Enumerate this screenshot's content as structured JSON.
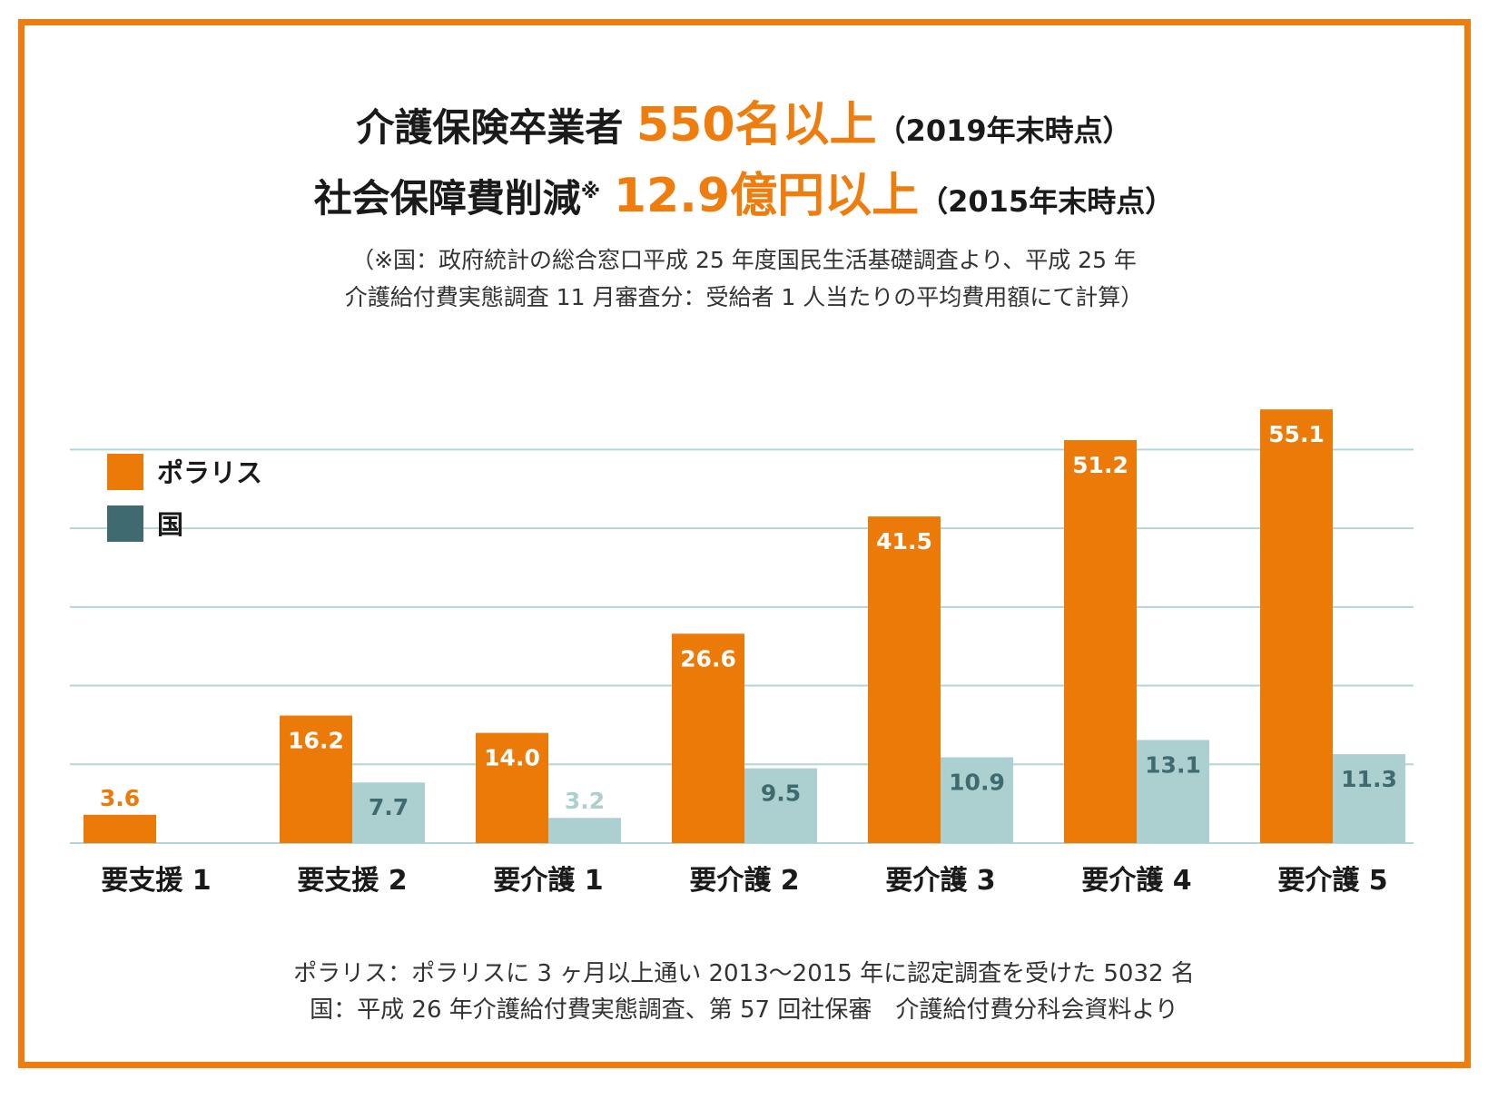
{
  "header": {
    "line1": {
      "prefix": "介護保険卒業者",
      "highlight": "550名以上",
      "suffix": "（2019年末時点）"
    },
    "line2": {
      "prefix": "社会保障費削減",
      "mark": "※",
      "highlight": "12.9億円以上",
      "suffix": "（2015年末時点）"
    }
  },
  "note": {
    "line1": "（※国：政府統計の総合窓口平成 25 年度国民生活基礎調査より、平成 25 年",
    "line2": "介護給付費実態調査 11 月審査分：受給者 1 人当たりの平均費用額にて計算）"
  },
  "footnote": {
    "line1": "ポラリス：ポラリスに 3 ヶ月以上通い 2013〜2015 年に認定調査を受けた 5032 名",
    "line2": "国：平成 26 年介護給付費実態調査、第 57 回社保審　介護給付費分科会資料より"
  },
  "chart_data": {
    "type": "bar",
    "categories": [
      "要支援 1",
      "要支援 2",
      "要介護 1",
      "要介護 2",
      "要介護 3",
      "要介護 4",
      "要介護 5"
    ],
    "series": [
      {
        "name": "ポラリス",
        "color": "#ec7a08",
        "label_color": "#ffffff",
        "values": [
          3.6,
          16.2,
          14.0,
          26.6,
          41.5,
          51.2,
          55.1
        ]
      },
      {
        "name": "国",
        "color": "#acd0d0",
        "legend_color": "#3f6a70",
        "label_color": "#3f6a70",
        "values": [
          null,
          7.7,
          3.2,
          9.5,
          10.9,
          13.1,
          11.3
        ]
      }
    ],
    "value_labels": [
      [
        "3.6",
        "16.2",
        "14.0",
        "26.6",
        "41.5",
        "51.2",
        "55.1"
      ],
      [
        "",
        "7.7",
        "3.2",
        "9.5",
        "10.9",
        "13.1",
        "11.3"
      ]
    ],
    "ylim": [
      0,
      55
    ],
    "gridlines": [
      10,
      20,
      30,
      40,
      50
    ],
    "grid_color": "#b3d5d5",
    "legend": "top-left"
  }
}
